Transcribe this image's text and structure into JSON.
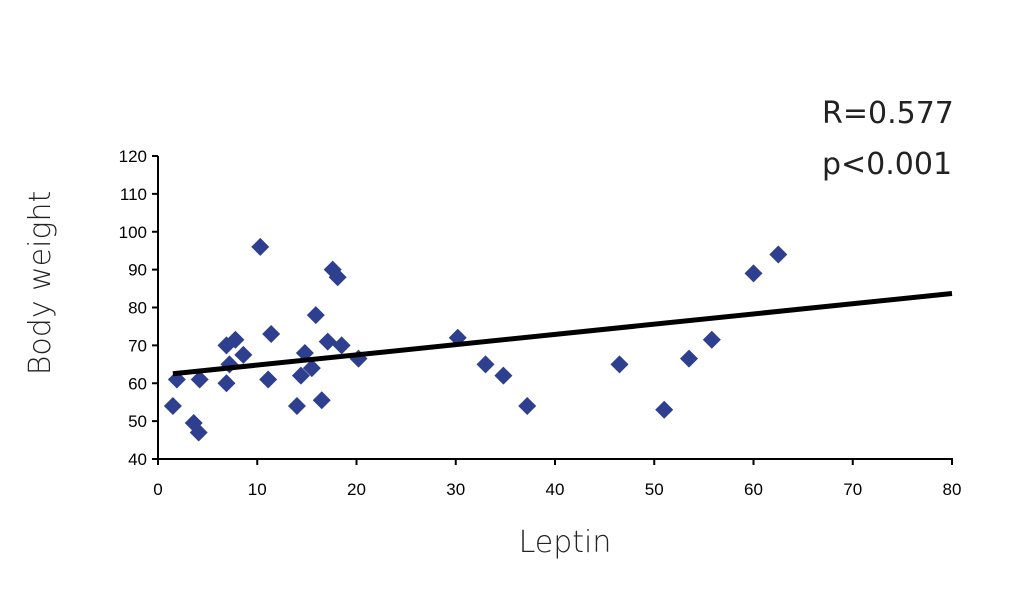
{
  "chart_data": {
    "type": "scatter",
    "xlabel": "Leptin",
    "ylabel": "Body weight",
    "xlim": [
      0,
      80
    ],
    "ylim": [
      40,
      120
    ],
    "xticks": [
      "0",
      "10",
      "20",
      "30",
      "40",
      "50",
      "60",
      "70",
      "80"
    ],
    "yticks": [
      "40",
      "50",
      "60",
      "70",
      "80",
      "90",
      "100",
      "110",
      "120"
    ],
    "grid": false,
    "annotations": [
      "R=0.577",
      "p<0.001"
    ],
    "marker_color": "#2e3f8f",
    "trendline": {
      "x": [
        1.5,
        80
      ],
      "y": [
        62.5,
        83.7
      ]
    },
    "points": [
      {
        "x": 1.5,
        "y": 54
      },
      {
        "x": 1.9,
        "y": 61
      },
      {
        "x": 3.6,
        "y": 49.5
      },
      {
        "x": 4.1,
        "y": 47
      },
      {
        "x": 4.2,
        "y": 61
      },
      {
        "x": 6.9,
        "y": 60
      },
      {
        "x": 6.9,
        "y": 70
      },
      {
        "x": 7.2,
        "y": 65
      },
      {
        "x": 7.8,
        "y": 71.5
      },
      {
        "x": 8.6,
        "y": 67.5
      },
      {
        "x": 10.3,
        "y": 96
      },
      {
        "x": 11.1,
        "y": 61
      },
      {
        "x": 11.4,
        "y": 73
      },
      {
        "x": 14.0,
        "y": 54
      },
      {
        "x": 14.4,
        "y": 62
      },
      {
        "x": 14.8,
        "y": 68
      },
      {
        "x": 15.5,
        "y": 64
      },
      {
        "x": 15.9,
        "y": 78
      },
      {
        "x": 16.5,
        "y": 55.5
      },
      {
        "x": 17.1,
        "y": 71
      },
      {
        "x": 17.6,
        "y": 90
      },
      {
        "x": 18.1,
        "y": 88
      },
      {
        "x": 18.5,
        "y": 70
      },
      {
        "x": 20.2,
        "y": 66.5
      },
      {
        "x": 30.2,
        "y": 72
      },
      {
        "x": 33.0,
        "y": 65
      },
      {
        "x": 34.8,
        "y": 62
      },
      {
        "x": 37.2,
        "y": 54
      },
      {
        "x": 46.5,
        "y": 65
      },
      {
        "x": 51.0,
        "y": 53
      },
      {
        "x": 53.5,
        "y": 66.5
      },
      {
        "x": 55.8,
        "y": 71.5
      },
      {
        "x": 60.0,
        "y": 89
      },
      {
        "x": 62.5,
        "y": 94
      }
    ]
  }
}
